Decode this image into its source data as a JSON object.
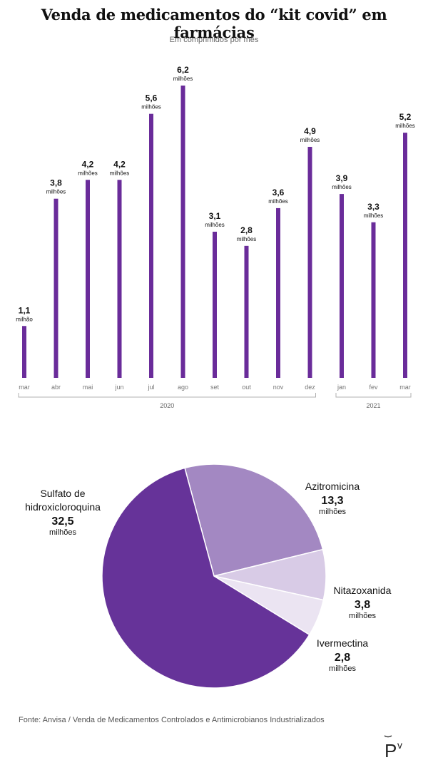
{
  "title": "Venda de medicamentos do “kit covid” em farmácias",
  "subtitle": "Em comprimidos por mês",
  "colors": {
    "bar": "#6a2c9a",
    "axis": "#b0b0b0",
    "pie": [
      "#663399",
      "#a388c2",
      "#d8cbe6",
      "#ebe4f2"
    ]
  },
  "chart_data": [
    {
      "type": "bar",
      "categories": [
        "mar",
        "abr",
        "mai",
        "jun",
        "jul",
        "ago",
        "set",
        "out",
        "nov",
        "dez",
        "jan",
        "fev",
        "mar"
      ],
      "values": [
        1.1,
        3.8,
        4.2,
        4.2,
        5.6,
        6.2,
        3.1,
        2.8,
        3.6,
        4.9,
        3.9,
        3.3,
        5.2
      ],
      "value_labels": [
        "1,1",
        "3,8",
        "4,2",
        "4,2",
        "5,6",
        "6,2",
        "3,1",
        "2,8",
        "3,6",
        "4,9",
        "3,9",
        "3,3",
        "5,2"
      ],
      "unit_labels": [
        "milhão",
        "milhões",
        "milhões",
        "milhões",
        "milhões",
        "milhões",
        "milhões",
        "milhões",
        "milhões",
        "milhões",
        "milhões",
        "milhões",
        "milhões"
      ],
      "groups": [
        {
          "label": "2020",
          "start": 0,
          "end": 9
        },
        {
          "label": "2021",
          "start": 10,
          "end": 12
        }
      ],
      "ylim": [
        0,
        6.2
      ],
      "grid": false
    },
    {
      "type": "pie",
      "labels": [
        "Sulfato de hidroxicloroquina",
        "Azitromicina",
        "Nitazoxanida",
        "Ivermectina"
      ],
      "label_lines": [
        [
          "Sulfato de",
          "hidroxicloroquina"
        ],
        [
          "Azitromicina"
        ],
        [
          "Nitazoxanida"
        ],
        [
          "Ivermectina"
        ]
      ],
      "values": [
        32.5,
        13.3,
        3.8,
        2.8
      ],
      "value_labels": [
        "32,5",
        "13,3",
        "3,8",
        "2,8"
      ],
      "unit_label": "milhões"
    }
  ],
  "source": "Fonte: Anvisa / Venda de Medicamentos Controlados e Antimicrobianos Industrializados",
  "logo_icon": "pv-logo-icon"
}
